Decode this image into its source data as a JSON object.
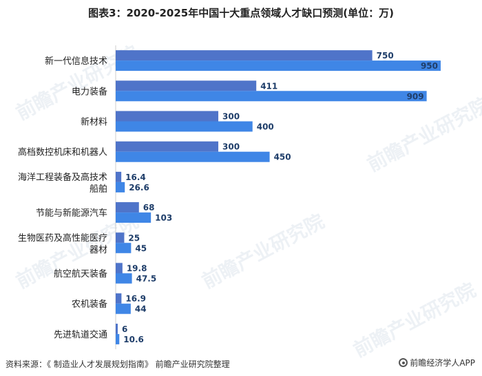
{
  "title": "图表3：2020-2025年中国十大重点领域人才缺口预测(单位：万)",
  "watermark": "前瞻产业研究院",
  "footer": {
    "source": "资料来源：《 制造业人才发展规划指南》 前瞻产业研究院整理",
    "brand": "前瞻经济学人APP"
  },
  "colors": {
    "series_2020": "#4f74c9",
    "series_2025": "#3f86e6",
    "axis": "#cccccc"
  },
  "chart_data": {
    "type": "bar",
    "orientation": "horizontal",
    "title": "图表3：2020-2025年中国十大重点领域人才缺口预测(单位：万)",
    "categories": [
      [
        "新一代信息技术"
      ],
      [
        "电力装备"
      ],
      [
        "新材料"
      ],
      [
        "高档数控机床和机器人"
      ],
      [
        "海洋工程装备及高技术",
        "船舶"
      ],
      [
        "节能与新能源汽车"
      ],
      [
        "生物医药及高性能医疗",
        "器材"
      ],
      [
        "航空航天装备"
      ],
      [
        "农机装备"
      ],
      [
        "先进轨道交通"
      ]
    ],
    "series": [
      {
        "values": [
          750,
          411,
          300,
          300,
          16.4,
          68,
          25,
          19.8,
          16.9,
          6
        ]
      },
      {
        "values": [
          950,
          909,
          400,
          450,
          26.6,
          103,
          45,
          47.5,
          44,
          10.6
        ]
      }
    ],
    "xlim": [
      0,
      950
    ],
    "legend": "none"
  }
}
